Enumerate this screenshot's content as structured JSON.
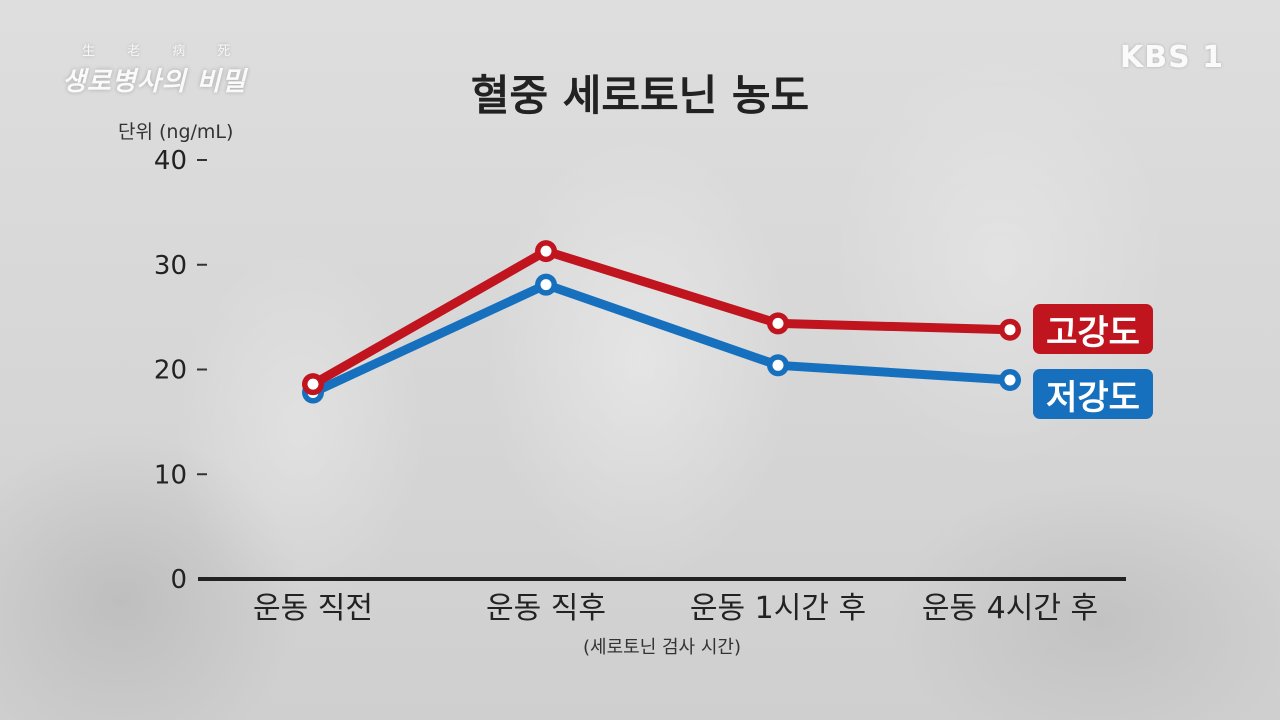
{
  "header": {
    "program_logo_small": "生 老 病 死",
    "program_logo": "생로병사의 비밀",
    "broadcaster_logo": "KBS 1"
  },
  "chart_data": {
    "type": "line",
    "title": "혈중 세로토닌 농도",
    "unit_label": "단위 (ng/mL)",
    "xlabel": "(세로토닌 검사 시간)",
    "ylabel": "",
    "categories": [
      "운동 직전",
      "운동 직후",
      "운동 1시간 후",
      "운동 4시간 후"
    ],
    "y_ticks": [
      0,
      10,
      20,
      30,
      40
    ],
    "y_tick_labels": [
      "0",
      "10",
      "20",
      "30",
      "40"
    ],
    "ylim": [
      0,
      40
    ],
    "grid": false,
    "legend_position": "right",
    "series": [
      {
        "name": "고강도",
        "values": [
          18.6,
          31.3,
          24.4,
          23.8
        ],
        "color": "#c0141e"
      },
      {
        "name": "저강도",
        "values": [
          17.8,
          28.1,
          20.4,
          19.0
        ],
        "color": "#1670be"
      }
    ]
  }
}
